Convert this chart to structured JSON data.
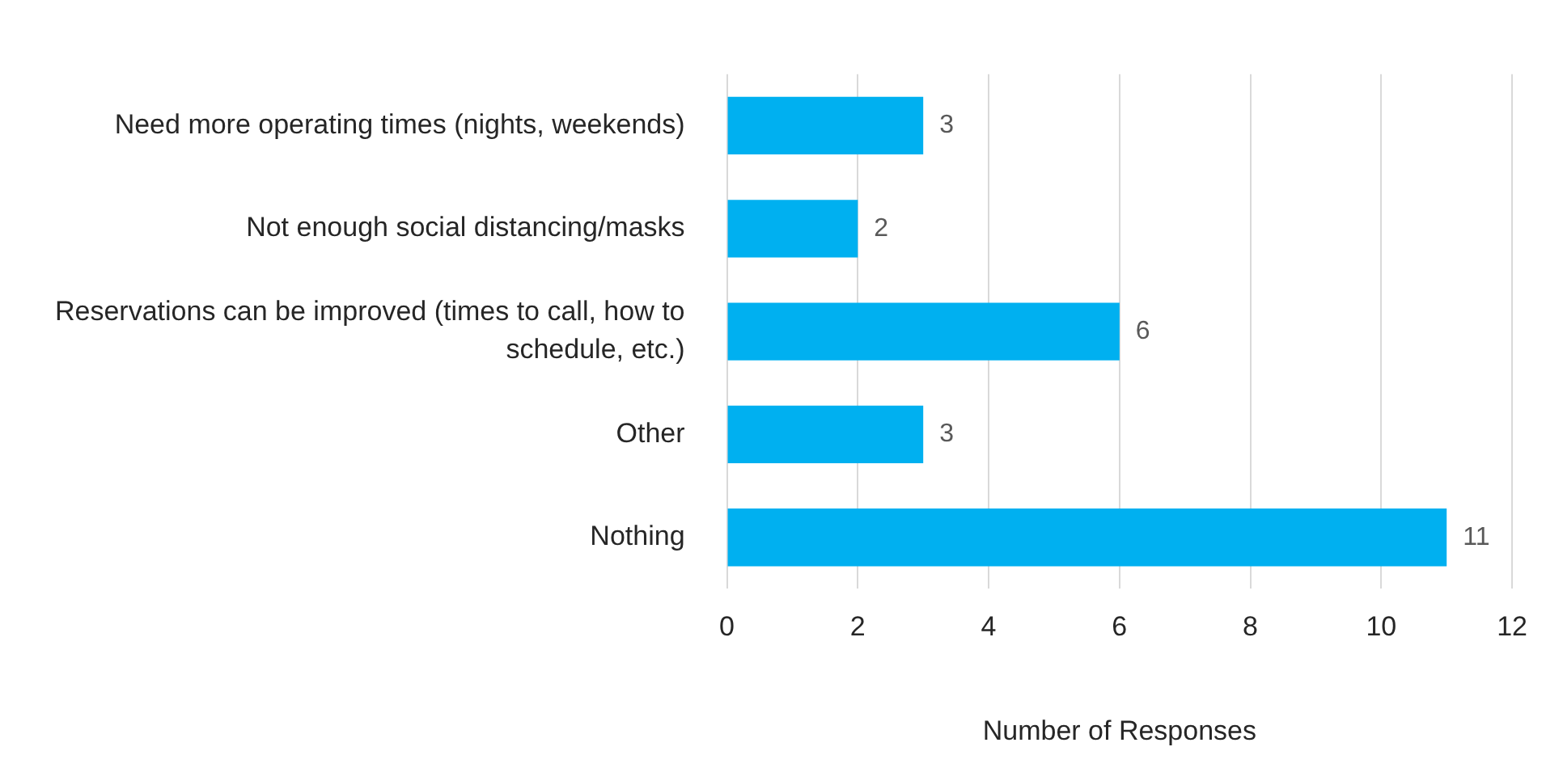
{
  "chart_data": {
    "type": "bar",
    "orientation": "horizontal",
    "categories": [
      "Need more operating times (nights, weekends)",
      "Not enough social distancing/masks",
      "Reservations can be improved (times to call, how to schedule, etc.)",
      "Other",
      "Nothing"
    ],
    "values": [
      3,
      2,
      6,
      3,
      11
    ],
    "color": "#00b0f0",
    "xlim": [
      0,
      12
    ],
    "xticks": [
      0,
      2,
      4,
      6,
      8,
      10,
      12
    ],
    "xlabel": "Number of Responses",
    "grid": "x",
    "data_labels": true,
    "legend": false
  }
}
